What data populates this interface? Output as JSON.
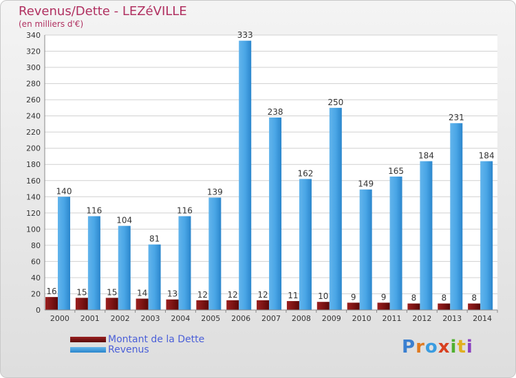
{
  "header": {
    "title": "Revenus/Dette - LEZéVILLE",
    "subtitle": "(en milliers d'€)"
  },
  "legend": {
    "items": [
      {
        "label": "Montant de la Dette",
        "color": "#7a1010"
      },
      {
        "label": "Revenus",
        "color": "#3a9ce0"
      }
    ]
  },
  "logo": {
    "text": "Proxiti"
  },
  "chart_data": {
    "type": "bar",
    "categories": [
      "2000",
      "2001",
      "2002",
      "2003",
      "2004",
      "2005",
      "2006",
      "2007",
      "2008",
      "2009",
      "2010",
      "2011",
      "2012",
      "2013",
      "2014"
    ],
    "series": [
      {
        "name": "Montant de la Dette",
        "color": "#7a1010",
        "values": [
          16,
          15,
          15,
          14,
          13,
          12,
          12,
          12,
          11,
          10,
          9,
          9,
          8,
          8,
          8
        ]
      },
      {
        "name": "Revenus",
        "color": "#3a9ce0",
        "values": [
          140,
          116,
          104,
          81,
          116,
          139,
          333,
          238,
          162,
          250,
          149,
          165,
          184,
          231,
          184
        ]
      }
    ],
    "ylim": [
      0,
      340
    ],
    "yticks": [
      0,
      20,
      40,
      60,
      80,
      100,
      120,
      140,
      160,
      180,
      200,
      220,
      240,
      260,
      280,
      300,
      320,
      340
    ],
    "grid": true,
    "legend_position": "bottom-left"
  }
}
